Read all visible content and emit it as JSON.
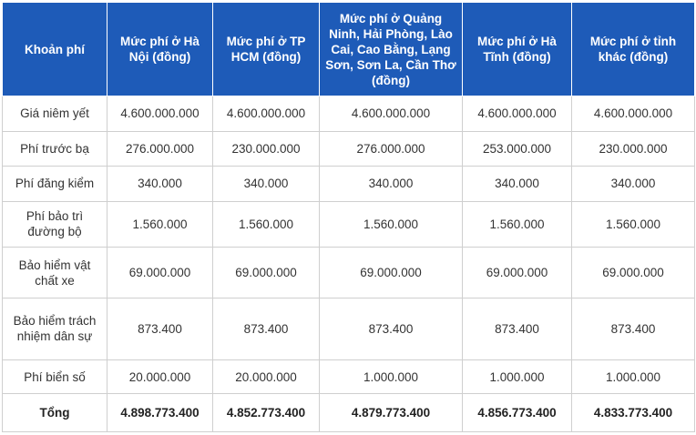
{
  "table": {
    "headers": [
      "Khoản phí",
      "Mức phí ở Hà Nội (đồng)",
      "Mức phí ở TP HCM (đồng)",
      "Mức phí ở Quảng Ninh, Hải Phòng, Lào Cai, Cao Bằng, Lạng Sơn, Sơn La, Cần Thơ (đồng)",
      "Mức phí ở Hà Tĩnh (đồng)",
      "Mức phí ở tỉnh khác (đồng)"
    ],
    "rows": [
      {
        "label": "Giá niêm yết",
        "values": [
          "4.600.000.000",
          "4.600.000.000",
          "4.600.000.000",
          "4.600.000.000",
          "4.600.000.000"
        ]
      },
      {
        "label": "Phí trước bạ",
        "values": [
          "276.000.000",
          "230.000.000",
          "276.000.000",
          "253.000.000",
          "230.000.000"
        ]
      },
      {
        "label": "Phí đăng kiểm",
        "values": [
          "340.000",
          "340.000",
          "340.000",
          "340.000",
          "340.000"
        ]
      },
      {
        "label": "Phí bảo trì đường bộ",
        "values": [
          "1.560.000",
          "1.560.000",
          "1.560.000",
          "1.560.000",
          "1.560.000"
        ]
      },
      {
        "label": "Bảo hiểm vật chất xe",
        "values": [
          "69.000.000",
          "69.000.000",
          "69.000.000",
          "69.000.000",
          "69.000.000"
        ]
      },
      {
        "label": "Bảo hiểm trách nhiệm dân sự",
        "values": [
          "873.400",
          "873.400",
          "873.400",
          "873.400",
          "873.400"
        ]
      },
      {
        "label": "Phí biển số",
        "values": [
          "20.000.000",
          "20.000.000",
          "1.000.000",
          "1.000.000",
          "1.000.000"
        ]
      },
      {
        "label": "Tổng",
        "values": [
          "4.898.773.400",
          "4.852.773.400",
          "4.879.773.400",
          "4.856.773.400",
          "4.833.773.400"
        ]
      }
    ]
  }
}
